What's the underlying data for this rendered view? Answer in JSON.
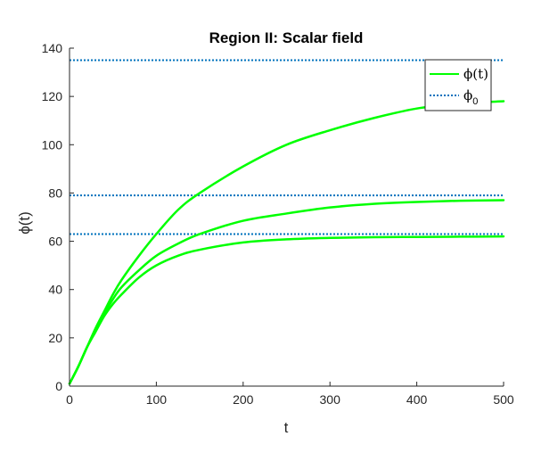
{
  "chart_data": {
    "type": "line",
    "title": "Region II: Scalar field",
    "xlabel": "t",
    "ylabel": "ϕ(t)",
    "xlim": [
      0,
      500
    ],
    "ylim": [
      0,
      140
    ],
    "xticks": [
      0,
      100,
      200,
      300,
      400,
      500
    ],
    "yticks": [
      0,
      20,
      40,
      60,
      80,
      100,
      120,
      140
    ],
    "grid": false,
    "legend_placement": "top-right",
    "colors": {
      "curve": "#00ff00",
      "reference": "#0072bd",
      "axis": "#262626"
    },
    "series": [
      {
        "name": "ϕ(t)",
        "style": "solid",
        "x": [
          0,
          10,
          20,
          30,
          40,
          50,
          60,
          80,
          100,
          125,
          150,
          200,
          250,
          300,
          350,
          400,
          450,
          500
        ],
        "y": [
          1,
          8,
          16,
          24,
          31,
          38,
          44,
          54,
          63,
          73,
          80,
          91,
          100,
          106,
          111,
          115,
          117,
          118
        ]
      },
      {
        "name": "",
        "style": "solid",
        "x": [
          0,
          10,
          20,
          30,
          40,
          50,
          60,
          80,
          100,
          125,
          150,
          200,
          250,
          300,
          350,
          400,
          450,
          500
        ],
        "y": [
          1,
          8,
          16,
          23,
          30,
          36,
          41,
          48,
          54,
          59,
          63,
          68.5,
          71.5,
          74,
          75.5,
          76.3,
          76.8,
          77
        ]
      },
      {
        "name": "",
        "style": "solid",
        "x": [
          0,
          10,
          20,
          30,
          40,
          50,
          60,
          80,
          100,
          125,
          150,
          200,
          250,
          300,
          350,
          400,
          450,
          500
        ],
        "y": [
          1,
          8,
          16,
          22.5,
          29,
          34,
          38,
          45,
          50,
          54,
          56.5,
          59.5,
          60.8,
          61.4,
          61.7,
          61.8,
          61.9,
          62
        ]
      }
    ],
    "reference_lines": {
      "name": "ϕ",
      "name_subscript": "0",
      "style": "dotted",
      "values": [
        135,
        79,
        63
      ]
    },
    "legend": [
      {
        "label": "ϕ(t)",
        "subscript": "",
        "style": "solid",
        "color": "#00ff00"
      },
      {
        "label": "ϕ",
        "subscript": "0",
        "style": "dotted",
        "color": "#0072bd"
      }
    ]
  }
}
